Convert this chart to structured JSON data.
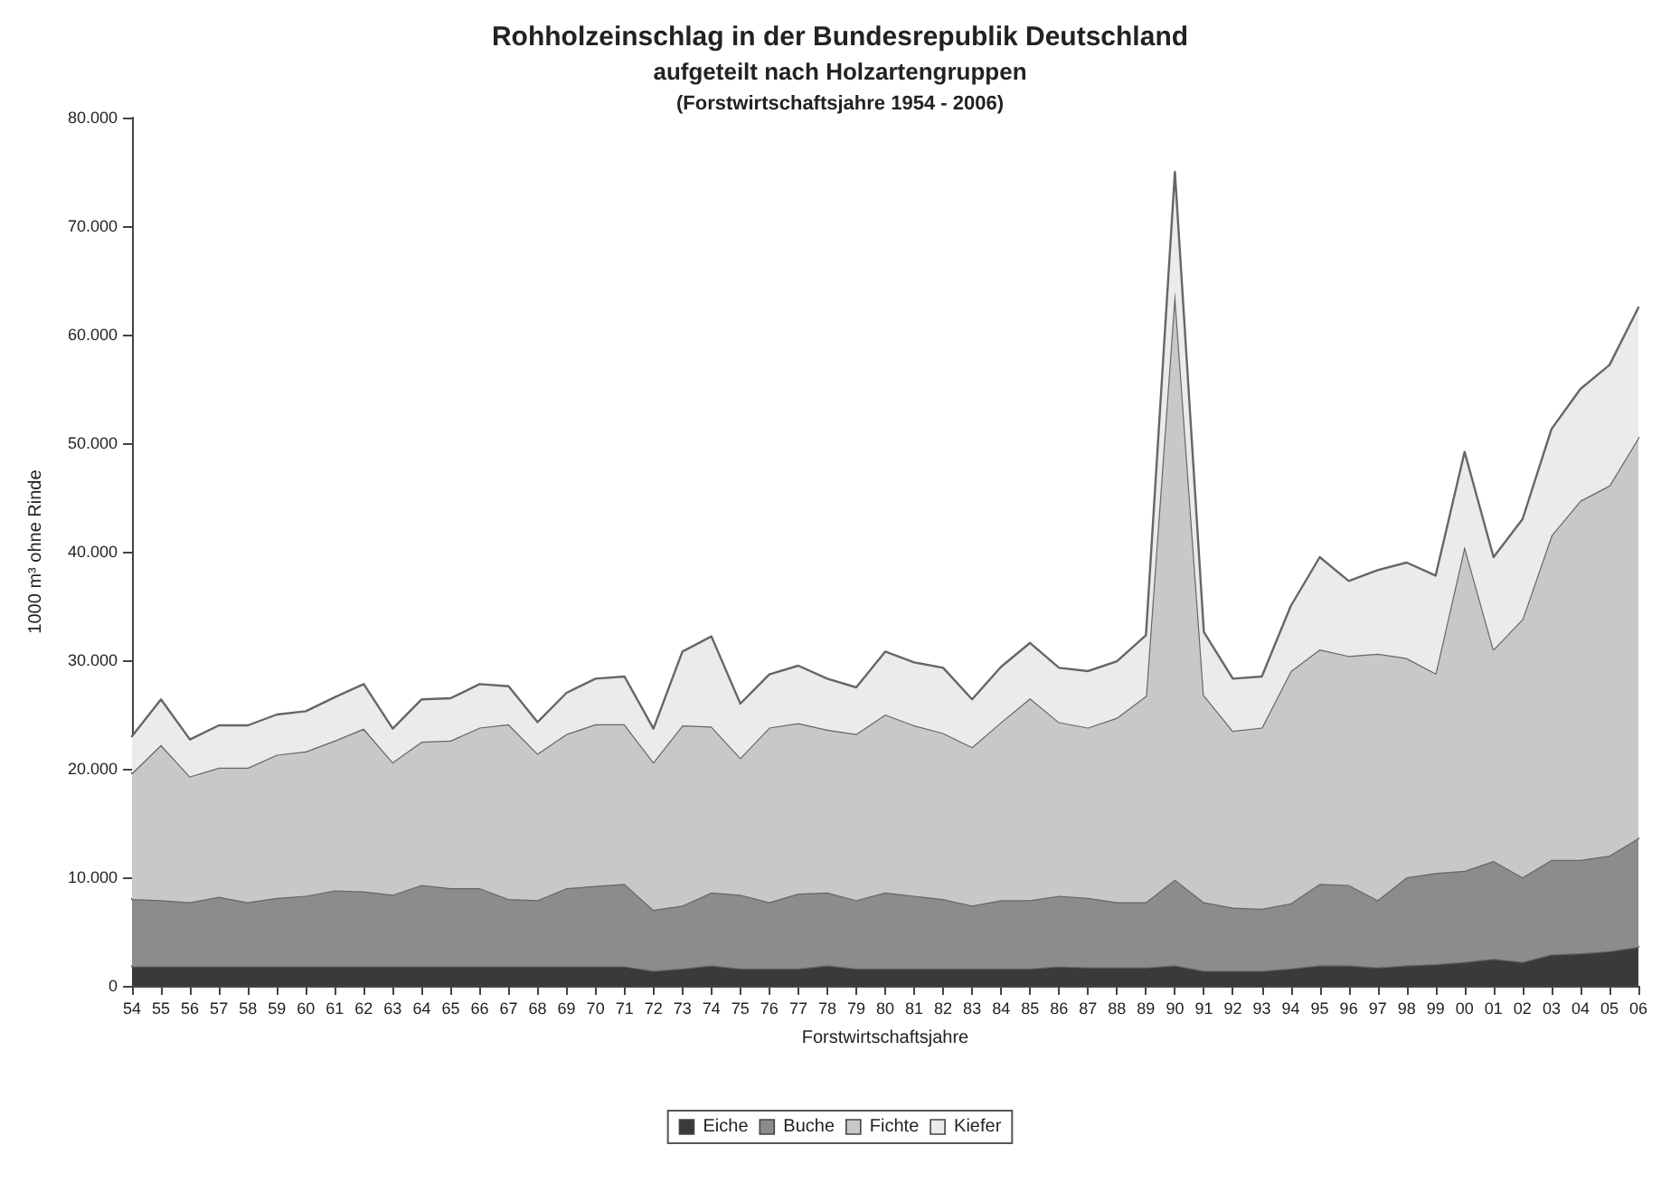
{
  "chart_data": {
    "type": "area",
    "stacked": true,
    "title": "Rohholzeinschlag in der Bundesrepublik Deutschland",
    "subtitle": "aufgeteilt nach Holzartengruppen\n(Forstwirtschaftsjahre 1954 - 2006)",
    "xlabel": "Forstwirtschaftsjahre",
    "ylabel": "1000 m³ ohne Rinde",
    "categories": [
      "54",
      "55",
      "56",
      "57",
      "58",
      "59",
      "60",
      "61",
      "62",
      "63",
      "64",
      "65",
      "66",
      "67",
      "68",
      "69",
      "70",
      "71",
      "72",
      "73",
      "74",
      "75",
      "76",
      "77",
      "78",
      "79",
      "80",
      "81",
      "82",
      "83",
      "84",
      "85",
      "86",
      "87",
      "88",
      "89",
      "90",
      "91",
      "92",
      "93",
      "94",
      "95",
      "96",
      "97",
      "98",
      "99",
      "00",
      "01",
      "02",
      "03",
      "04",
      "05",
      "06"
    ],
    "series": [
      {
        "name": "Eiche",
        "color": "#3a3a3a",
        "values": [
          1800,
          1800,
          1800,
          1800,
          1800,
          1800,
          1800,
          1800,
          1800,
          1800,
          1800,
          1800,
          1800,
          1800,
          1800,
          1800,
          1800,
          1800,
          1400,
          1600,
          1900,
          1600,
          1600,
          1600,
          1900,
          1600,
          1600,
          1600,
          1600,
          1600,
          1600,
          1600,
          1800,
          1700,
          1700,
          1700,
          1900,
          1400,
          1400,
          1400,
          1600,
          1900,
          1900,
          1700,
          1900,
          2000,
          2200,
          2500,
          2200,
          2900,
          3000,
          3200,
          3600
        ]
      },
      {
        "name": "Buche",
        "color": "#8c8c8c",
        "values": [
          6200,
          6100,
          5900,
          6400,
          5900,
          6300,
          6500,
          7000,
          6900,
          6600,
          7500,
          7200,
          7200,
          6200,
          6100,
          7200,
          7400,
          7600,
          5600,
          5800,
          6700,
          6800,
          6100,
          6900,
          6700,
          6300,
          7000,
          6700,
          6400,
          5800,
          6300,
          6300,
          6500,
          6400,
          6000,
          6000,
          7900,
          6300,
          5800,
          5700,
          6000,
          7500,
          7400,
          6200,
          8100,
          8400,
          8400,
          9000,
          7800,
          8700,
          8600,
          8800,
          10000
        ]
      },
      {
        "name": "Fichte",
        "color": "#c8c8c8",
        "values": [
          11600,
          14300,
          11600,
          11900,
          12400,
          13200,
          13300,
          13800,
          15000,
          12200,
          13200,
          13600,
          14800,
          16100,
          13500,
          14200,
          14900,
          14700,
          13600,
          16600,
          15300,
          12600,
          16100,
          15700,
          15000,
          15300,
          16400,
          15700,
          15300,
          14600,
          16400,
          18600,
          16000,
          15700,
          17000,
          19000,
          54200,
          19100,
          16300,
          16700,
          21400,
          21600,
          21100,
          22700,
          20200,
          18400,
          29900,
          19500,
          23800,
          29900,
          33100,
          34100,
          36900
        ]
      },
      {
        "name": "Kiefer",
        "color": "#ebebeb",
        "values": [
          3400,
          4200,
          3400,
          3900,
          3900,
          3700,
          3700,
          4000,
          4100,
          3100,
          3900,
          3900,
          4000,
          3500,
          2900,
          3800,
          4200,
          4400,
          3100,
          6800,
          8300,
          5000,
          4900,
          5300,
          4700,
          4300,
          5800,
          5800,
          6000,
          4400,
          5100,
          5100,
          5000,
          5200,
          5200,
          5600,
          11000,
          5800,
          4800,
          4700,
          6000,
          8500,
          6900,
          7700,
          8800,
          9000,
          8700,
          8500,
          9200,
          9800,
          10300,
          11100,
          12000
        ]
      }
    ],
    "ylim": [
      0,
      80000
    ],
    "yticks": [
      {
        "value": 0,
        "label": "0"
      },
      {
        "value": 10000,
        "label": "10.000"
      },
      {
        "value": 20000,
        "label": "20.000"
      },
      {
        "value": 30000,
        "label": "30.000"
      },
      {
        "value": 40000,
        "label": "40.000"
      },
      {
        "value": 50000,
        "label": "50.000"
      },
      {
        "value": 60000,
        "label": "60.000"
      },
      {
        "value": 70000,
        "label": "70.000"
      },
      {
        "value": 80000,
        "label": "80.000"
      }
    ],
    "grid": false,
    "legend": "bottom",
    "marker": "none",
    "line_style": "solid"
  }
}
